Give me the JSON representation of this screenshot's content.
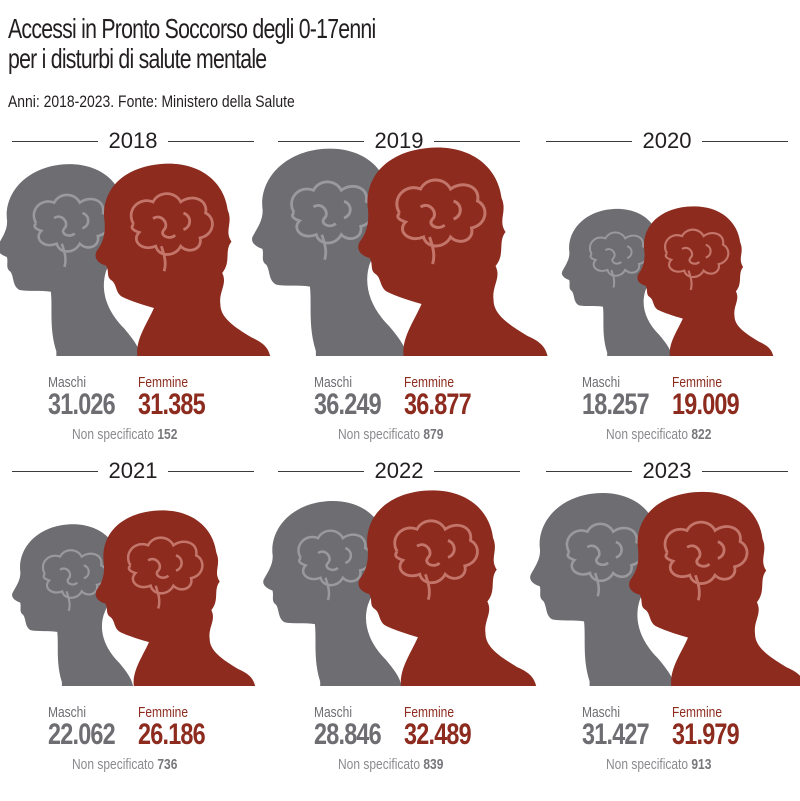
{
  "title_line1": "Accessi in Pronto Soccorso degli 0-17enni",
  "title_line2": "per i disturbi di salute mentale",
  "subtitle": "Anni: 2018-2023. Fonte: Ministero della Salute",
  "labels": {
    "male": "Maschi",
    "female": "Femmine",
    "unspecified": "Non specificato"
  },
  "colors": {
    "male": "#6d6d72",
    "female": "#8c2b1e"
  },
  "icons": {
    "male": "male-head-silhouette-icon",
    "female": "female-head-silhouette-icon",
    "brain": "brain-outline-icon"
  },
  "chart_data": {
    "type": "pictogram",
    "categories": [
      "2018",
      "2019",
      "2020",
      "2021",
      "2022",
      "2023"
    ],
    "series": [
      {
        "name": "Maschi",
        "values": [
          31026,
          36249,
          18257,
          22062,
          28846,
          31427
        ]
      },
      {
        "name": "Femmine",
        "values": [
          31385,
          36877,
          19009,
          26186,
          32489,
          31979
        ]
      },
      {
        "name": "Non specificato",
        "values": [
          152,
          879,
          822,
          736,
          839,
          913
        ]
      }
    ],
    "display": {
      "Maschi": [
        "31.026",
        "36.249",
        "18.257",
        "22.062",
        "28.846",
        "31.427"
      ],
      "Femmine": [
        "31.385",
        "36.877",
        "19.009",
        "26.186",
        "32.489",
        "31.979"
      ],
      "Non specificato": [
        "152",
        "879",
        "822",
        "736",
        "839",
        "913"
      ]
    }
  }
}
